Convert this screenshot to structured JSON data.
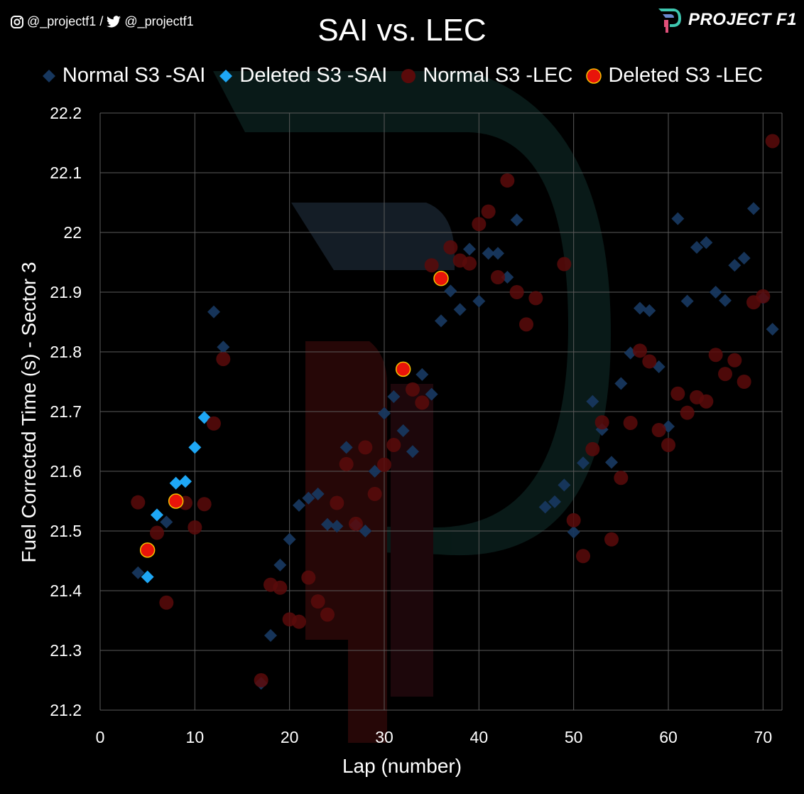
{
  "header": {
    "handle_text": "@_projectf1 /",
    "handle_text2": "@_projectf1",
    "logo_text": "PROJECT F1"
  },
  "chart_data": {
    "type": "scatter",
    "title": "SAI vs. LEC",
    "xlabel": "Lap (number)",
    "ylabel": "Fuel Corrected Time (s) - Sector 3",
    "xlim": [
      0,
      72
    ],
    "ylim": [
      21.2,
      22.2
    ],
    "x_ticks": [
      0,
      10,
      20,
      30,
      40,
      50,
      60,
      70
    ],
    "y_ticks": [
      21.2,
      21.3,
      21.4,
      21.5,
      21.6,
      21.7,
      21.8,
      21.9,
      22,
      22.1,
      22.2
    ],
    "y_tick_labels": [
      "21.2",
      "21.3",
      "21.4",
      "21.5",
      "21.6",
      "21.7",
      "21.8",
      "21.9",
      "22",
      "22.1",
      "22.2"
    ],
    "grid": true,
    "legend_position": "top",
    "series": [
      {
        "name": "Normal S3 -SAI",
        "marker": "diamond",
        "color": "#17375e",
        "points": [
          [
            4,
            21.43
          ],
          [
            7,
            21.515
          ],
          [
            12,
            21.867
          ],
          [
            13,
            21.808
          ],
          [
            17,
            21.245
          ],
          [
            18,
            21.325
          ],
          [
            19,
            21.443
          ],
          [
            20,
            21.486
          ],
          [
            21,
            21.543
          ],
          [
            22,
            21.555
          ],
          [
            23,
            21.562
          ],
          [
            24,
            21.511
          ],
          [
            25,
            21.508
          ],
          [
            26,
            21.64
          ],
          [
            27,
            21.51
          ],
          [
            28,
            21.5
          ],
          [
            29,
            21.6
          ],
          [
            30,
            21.697
          ],
          [
            31,
            21.725
          ],
          [
            32,
            21.668
          ],
          [
            33,
            21.633
          ],
          [
            34,
            21.762
          ],
          [
            35,
            21.729
          ],
          [
            36,
            21.852
          ],
          [
            37,
            21.902
          ],
          [
            38,
            21.871
          ],
          [
            39,
            21.972
          ],
          [
            40,
            21.885
          ],
          [
            41,
            21.965
          ],
          [
            42,
            21.965
          ],
          [
            43,
            21.925
          ],
          [
            44,
            22.021
          ],
          [
            47,
            21.54
          ],
          [
            48,
            21.549
          ],
          [
            49,
            21.577
          ],
          [
            50,
            21.498
          ],
          [
            51,
            21.614
          ],
          [
            52,
            21.717
          ],
          [
            53,
            21.67
          ],
          [
            54,
            21.615
          ],
          [
            55,
            21.747
          ],
          [
            56,
            21.798
          ],
          [
            57,
            21.873
          ],
          [
            58,
            21.869
          ],
          [
            59,
            21.775
          ],
          [
            60,
            21.675
          ],
          [
            61,
            22.023
          ],
          [
            62,
            21.885
          ],
          [
            63,
            21.975
          ],
          [
            64,
            21.983
          ],
          [
            65,
            21.9
          ],
          [
            66,
            21.886
          ],
          [
            67,
            21.945
          ],
          [
            68,
            21.957
          ],
          [
            69,
            22.04
          ],
          [
            70,
            21.89
          ],
          [
            71,
            21.838
          ]
        ]
      },
      {
        "name": "Deleted S3 -SAI",
        "marker": "diamond",
        "color": "#1ea7f5",
        "points": [
          [
            5,
            21.423
          ],
          [
            6,
            21.527
          ],
          [
            8,
            21.58
          ],
          [
            9,
            21.583
          ],
          [
            10,
            21.64
          ],
          [
            11,
            21.69
          ]
        ]
      },
      {
        "name": "Normal S3 -LEC",
        "marker": "circle",
        "color": "#5a0a0a",
        "points": [
          [
            4,
            21.548
          ],
          [
            6,
            21.497
          ],
          [
            7,
            21.38
          ],
          [
            9,
            21.547
          ],
          [
            10,
            21.506
          ],
          [
            11,
            21.545
          ],
          [
            12,
            21.68
          ],
          [
            13,
            21.788
          ],
          [
            17,
            21.25
          ],
          [
            18,
            21.41
          ],
          [
            19,
            21.405
          ],
          [
            20,
            21.352
          ],
          [
            21,
            21.348
          ],
          [
            22,
            21.422
          ],
          [
            23,
            21.382
          ],
          [
            24,
            21.36
          ],
          [
            25,
            21.547
          ],
          [
            26,
            21.612
          ],
          [
            27,
            21.512
          ],
          [
            28,
            21.64
          ],
          [
            29,
            21.562
          ],
          [
            30,
            21.611
          ],
          [
            31,
            21.644
          ],
          [
            33,
            21.737
          ],
          [
            34,
            21.715
          ],
          [
            35,
            21.945
          ],
          [
            37,
            21.975
          ],
          [
            38,
            21.953
          ],
          [
            39,
            21.948
          ],
          [
            40,
            22.014
          ],
          [
            41,
            22.035
          ],
          [
            42,
            21.925
          ],
          [
            43,
            22.087
          ],
          [
            44,
            21.9
          ],
          [
            45,
            21.846
          ],
          [
            46,
            21.89
          ],
          [
            49,
            21.947
          ],
          [
            50,
            21.518
          ],
          [
            51,
            21.458
          ],
          [
            52,
            21.637
          ],
          [
            53,
            21.682
          ],
          [
            54,
            21.486
          ],
          [
            55,
            21.589
          ],
          [
            56,
            21.681
          ],
          [
            57,
            21.802
          ],
          [
            58,
            21.784
          ],
          [
            59,
            21.669
          ],
          [
            60,
            21.644
          ],
          [
            61,
            21.73
          ],
          [
            62,
            21.698
          ],
          [
            63,
            21.724
          ],
          [
            64,
            21.717
          ],
          [
            65,
            21.795
          ],
          [
            66,
            21.763
          ],
          [
            67,
            21.786
          ],
          [
            68,
            21.75
          ],
          [
            69,
            21.883
          ],
          [
            70,
            21.893
          ],
          [
            71,
            22.153
          ]
        ]
      },
      {
        "name": "Deleted S3 -LEC",
        "marker": "circle",
        "color": "#e8140a",
        "points": [
          [
            5,
            21.468
          ],
          [
            8,
            21.55
          ],
          [
            32,
            21.771
          ],
          [
            36,
            21.923
          ]
        ]
      }
    ]
  }
}
